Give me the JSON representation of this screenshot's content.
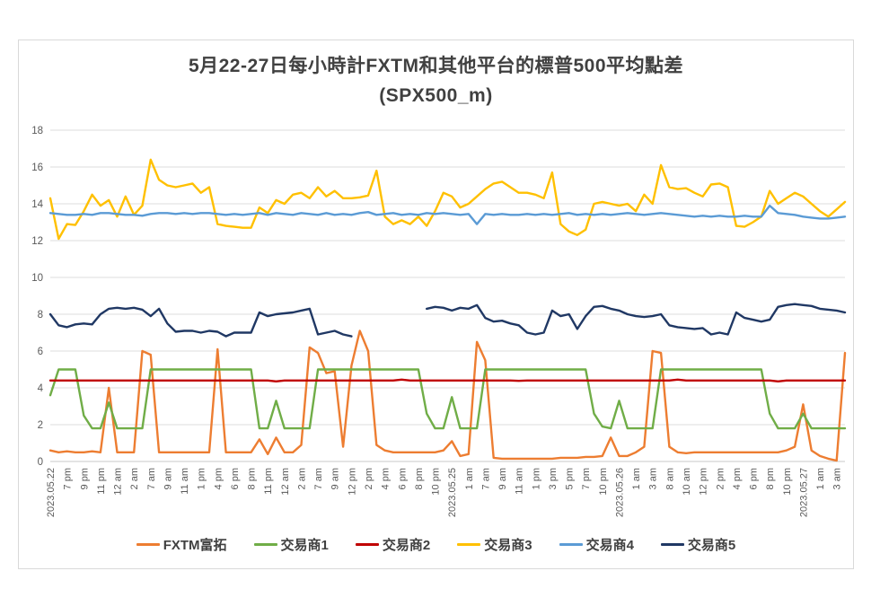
{
  "title": {
    "line1": "5月22-27日每小時計FXTM和其他平台的標普500平均點差",
    "line2": "(SPX500_m)"
  },
  "chart_data": {
    "type": "line",
    "title": "5月22-27日每小時計FXTM和其他平台的標普500平均點差 (SPX500_m)",
    "grid": true,
    "legend_position": "bottom",
    "y_axis": {
      "min": 0,
      "max": 18,
      "step": 2
    },
    "x_label_every_n_points": 2,
    "x_labels": [
      "2023.05.22",
      "7 pm",
      "9 pm",
      "11 pm",
      "12 am",
      "2 am",
      "7 am",
      "9 am",
      "11 am",
      "1 pm",
      "4 pm",
      "6 pm",
      "8 pm",
      "11 pm",
      "12 am",
      "2 am",
      "7 am",
      "9 am",
      "12 pm",
      "2 pm",
      "4 pm",
      "6 pm",
      "8 pm",
      "10 pm",
      "2023.05.25",
      "1 am",
      "7 am",
      "9 am",
      "11 am",
      "1 pm",
      "3 pm",
      "5 pm",
      "7 pm",
      "10 pm",
      "2023.05.26",
      "1 am",
      "3 am",
      "8 am",
      "10 am",
      "12 pm",
      "2 pm",
      "4 pm",
      "6 pm",
      "8 pm",
      "10 pm",
      "2023.05.27",
      "1 am",
      "3 am"
    ],
    "series": [
      {
        "name": "FXTM富拓",
        "color": "#ED7D31",
        "values": [
          0.6,
          0.5,
          0.55,
          0.5,
          0.5,
          0.55,
          0.5,
          4.0,
          0.5,
          0.5,
          0.5,
          6.0,
          5.8,
          0.5,
          0.5,
          0.5,
          0.5,
          0.5,
          0.5,
          0.5,
          6.1,
          0.5,
          0.5,
          0.5,
          0.5,
          1.2,
          0.4,
          1.3,
          0.5,
          0.5,
          0.9,
          6.2,
          5.9,
          4.8,
          4.9,
          0.8,
          5.2,
          7.1,
          6.0,
          0.9,
          0.6,
          0.5,
          0.5,
          0.5,
          0.5,
          0.5,
          0.5,
          0.6,
          1.1,
          0.3,
          0.4,
          6.5,
          5.5,
          0.2,
          0.15,
          0.15,
          0.15,
          0.15,
          0.15,
          0.15,
          0.15,
          0.2,
          0.2,
          0.2,
          0.25,
          0.25,
          0.3,
          1.3,
          0.3,
          0.3,
          0.5,
          0.8,
          6.0,
          5.9,
          0.8,
          0.5,
          0.45,
          0.5,
          0.5,
          0.5,
          0.5,
          0.5,
          0.5,
          0.5,
          0.5,
          0.5,
          0.5,
          0.5,
          0.6,
          0.8,
          3.1,
          0.6,
          0.3,
          0.15,
          0.05,
          5.9
        ]
      },
      {
        "name": "交易商1",
        "color": "#70AD47",
        "values": [
          3.6,
          5,
          5,
          5,
          2.5,
          1.8,
          1.8,
          3.2,
          1.8,
          1.8,
          1.8,
          1.8,
          5,
          5,
          5,
          5,
          5,
          5,
          5,
          5,
          5,
          5,
          5,
          5,
          5,
          1.8,
          1.8,
          3.3,
          1.8,
          1.8,
          1.8,
          1.8,
          5,
          5,
          5,
          5,
          5,
          5,
          5,
          5,
          5,
          5,
          5,
          5,
          5,
          2.6,
          1.8,
          1.8,
          3.5,
          1.8,
          1.8,
          1.8,
          5,
          5,
          5,
          5,
          5,
          5,
          5,
          5,
          5,
          5,
          5,
          5,
          5,
          2.6,
          1.9,
          1.8,
          3.3,
          1.8,
          1.8,
          1.8,
          1.8,
          5,
          5,
          5,
          5,
          5,
          5,
          5,
          5,
          5,
          5,
          5,
          5,
          5,
          2.6,
          1.8,
          1.8,
          1.8,
          2.6,
          1.8,
          1.8,
          1.8,
          1.8,
          1.8
        ]
      },
      {
        "name": "交易商2",
        "color": "#C00000",
        "values": [
          4.4,
          4.4,
          4.4,
          4.4,
          4.4,
          4.4,
          4.4,
          4.4,
          4.4,
          4.4,
          4.4,
          4.4,
          4.4,
          4.4,
          4.4,
          4.4,
          4.4,
          4.4,
          4.4,
          4.4,
          4.4,
          4.4,
          4.4,
          4.4,
          4.4,
          4.4,
          4.4,
          4.35,
          4.4,
          4.4,
          4.4,
          4.4,
          4.4,
          4.4,
          4.4,
          4.4,
          4.4,
          4.4,
          4.4,
          4.4,
          4.4,
          4.4,
          4.45,
          4.4,
          4.4,
          4.4,
          4.4,
          4.4,
          4.4,
          4.4,
          4.4,
          4.4,
          4.4,
          4.4,
          4.4,
          4.4,
          4.38,
          4.4,
          4.4,
          4.4,
          4.4,
          4.4,
          4.4,
          4.4,
          4.4,
          4.4,
          4.4,
          4.4,
          4.4,
          4.4,
          4.4,
          4.4,
          4.4,
          4.4,
          4.4,
          4.45,
          4.4,
          4.4,
          4.4,
          4.4,
          4.4,
          4.4,
          4.4,
          4.4,
          4.4,
          4.4,
          4.4,
          4.35,
          4.4,
          4.4,
          4.4,
          4.4,
          4.4,
          4.4,
          4.4,
          4.4
        ]
      },
      {
        "name": "交易商3",
        "color": "#FFC000",
        "values": [
          14.3,
          12.1,
          12.9,
          12.85,
          13.6,
          14.5,
          13.9,
          14.2,
          13.3,
          14.4,
          13.4,
          13.9,
          16.4,
          15.3,
          15.0,
          14.9,
          15.0,
          15.1,
          14.6,
          14.9,
          12.9,
          12.8,
          12.75,
          12.7,
          12.7,
          13.8,
          13.5,
          14.2,
          14.0,
          14.5,
          14.6,
          14.3,
          14.9,
          14.4,
          14.7,
          14.3,
          14.3,
          14.35,
          14.45,
          15.8,
          13.3,
          12.9,
          13.1,
          12.9,
          13.3,
          12.8,
          13.6,
          14.6,
          14.4,
          13.8,
          14.0,
          14.4,
          14.8,
          15.1,
          15.2,
          14.9,
          14.6,
          14.6,
          14.5,
          14.3,
          15.7,
          12.9,
          12.5,
          12.3,
          12.6,
          14.0,
          14.1,
          14.0,
          13.9,
          14.0,
          13.6,
          14.5,
          14.0,
          16.1,
          14.9,
          14.8,
          14.85,
          14.6,
          14.4,
          15.05,
          15.1,
          14.9,
          12.8,
          12.75,
          13.0,
          13.3,
          14.7,
          14.0,
          14.3,
          14.6,
          14.4,
          14.0,
          13.6,
          13.3,
          13.7,
          14.1
        ]
      },
      {
        "name": "交易商4",
        "color": "#5B9BD5",
        "values": [
          13.5,
          13.45,
          13.4,
          13.4,
          13.45,
          13.4,
          13.5,
          13.5,
          13.45,
          13.4,
          13.4,
          13.35,
          13.45,
          13.5,
          13.5,
          13.45,
          13.5,
          13.45,
          13.5,
          13.5,
          13.45,
          13.4,
          13.45,
          13.4,
          13.45,
          13.5,
          13.4,
          13.5,
          13.45,
          13.4,
          13.5,
          13.45,
          13.4,
          13.5,
          13.4,
          13.45,
          13.4,
          13.5,
          13.55,
          13.4,
          13.45,
          13.5,
          13.4,
          13.45,
          13.4,
          13.5,
          13.45,
          13.5,
          13.45,
          13.4,
          13.45,
          12.9,
          13.45,
          13.4,
          13.45,
          13.4,
          13.4,
          13.45,
          13.4,
          13.45,
          13.4,
          13.45,
          13.5,
          13.4,
          13.45,
          13.4,
          13.45,
          13.4,
          13.45,
          13.5,
          13.45,
          13.4,
          13.45,
          13.5,
          13.45,
          13.4,
          13.35,
          13.3,
          13.35,
          13.3,
          13.35,
          13.3,
          13.3,
          13.35,
          13.3,
          13.3,
          13.9,
          13.5,
          13.45,
          13.4,
          13.3,
          13.25,
          13.2,
          13.2,
          13.25,
          13.3
        ]
      },
      {
        "name": "交易商5",
        "color": "#203864",
        "values": [
          8.0,
          7.4,
          7.3,
          7.45,
          7.5,
          7.45,
          8.0,
          8.3,
          8.35,
          8.3,
          8.35,
          8.25,
          7.9,
          8.3,
          7.5,
          7.05,
          7.1,
          7.1,
          7.0,
          7.1,
          7.05,
          6.8,
          7.0,
          7.0,
          7.0,
          8.1,
          7.9,
          8.0,
          8.05,
          8.1,
          8.2,
          8.3,
          6.9,
          7.0,
          7.1,
          6.9,
          6.8,
          null,
          null,
          null,
          null,
          null,
          null,
          null,
          null,
          8.3,
          8.4,
          8.35,
          8.2,
          8.35,
          8.3,
          8.5,
          7.8,
          7.6,
          7.65,
          7.5,
          7.4,
          7.0,
          6.9,
          7.0,
          8.2,
          7.9,
          8.0,
          7.2,
          7.9,
          8.4,
          8.45,
          8.3,
          8.2,
          8.0,
          7.9,
          7.85,
          7.9,
          8.0,
          7.4,
          7.3,
          7.25,
          7.2,
          7.25,
          6.9,
          7.0,
          6.9,
          8.1,
          7.8,
          7.7,
          7.6,
          7.7,
          8.4,
          8.5,
          8.55,
          8.5,
          8.45,
          8.3,
          8.25,
          8.2,
          8.1
        ]
      }
    ]
  }
}
